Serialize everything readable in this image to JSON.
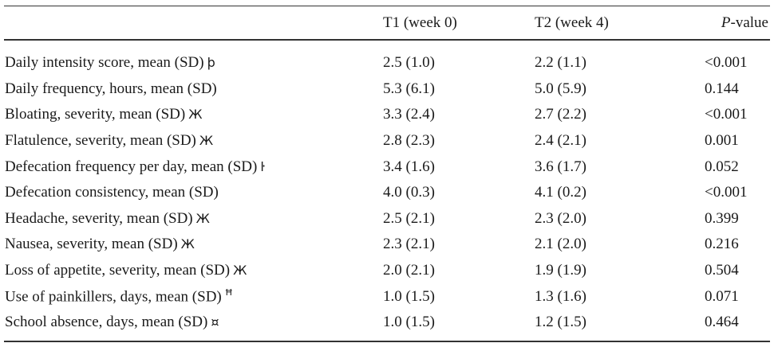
{
  "header": {
    "col_t1": "T1 (week 0)",
    "col_t2": "T2 (week 4)",
    "col_p_italic": "P",
    "col_p_rest": "-value"
  },
  "rows": [
    {
      "label": "Daily intensity score, mean (SD)",
      "mark": "þ",
      "t1": "2.5 (1.0)",
      "t2": "2.2 (1.1)",
      "p": "<0.001"
    },
    {
      "label": "Daily frequency, hours, mean (SD)",
      "mark": "",
      "t1": "5.3 (6.1)",
      "t2": "5.0 (5.9)",
      "p": "0.144"
    },
    {
      "label": "Bloating, severity, mean (SD)",
      "mark": "Ж",
      "t1": "3.3 (2.4)",
      "t2": "2.7 (2.2)",
      "p": "<0.001"
    },
    {
      "label": "Flatulence, severity, mean (SD)",
      "mark": "Ж",
      "t1": "2.8 (2.3)",
      "t2": "2.4 (2.1)",
      "p": "0.001"
    },
    {
      "label": "Defecation frequency per day, mean (SD)",
      "mark": "ŀ",
      "t1": "3.4 (1.6)",
      "t2": "3.6 (1.7)",
      "p": "0.052"
    },
    {
      "label": "Defecation consistency, mean (SD)",
      "mark": "",
      "t1": "4.0 (0.3)",
      "t2": "4.1 (0.2)",
      "p": "<0.001"
    },
    {
      "label": "Headache, severity, mean (SD)",
      "mark": "Ж",
      "t1": "2.5 (2.1)",
      "t2": "2.3 (2.0)",
      "p": "0.399"
    },
    {
      "label": "Nausea, severity, mean (SD)",
      "mark": "Ж",
      "t1": "2.3 (2.1)",
      "t2": "2.1 (2.0)",
      "p": "0.216"
    },
    {
      "label": "Loss of appetite, severity, mean (SD)",
      "mark": "Ж",
      "t1": "2.0 (2.1)",
      "t2": "1.9 (1.9)",
      "p": "0.504"
    },
    {
      "label": "Use of painkillers, days, mean (SD)",
      "mark": "Ħ",
      "t1": "1.0 (1.5)",
      "t2": "1.3 (1.6)",
      "p": "0.071"
    },
    {
      "label": "School absence, days, mean (SD)",
      "mark": "¤",
      "t1": "1.0 (1.5)",
      "t2": "1.2 (1.5)",
      "p": "0.464"
    }
  ]
}
